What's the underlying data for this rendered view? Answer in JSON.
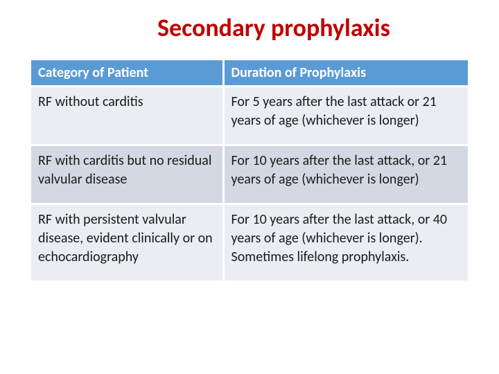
{
  "slide": {
    "title": "Secondary prophylaxis",
    "title_color": "#c00000",
    "title_fontsize": 36,
    "background_color": "#ffffff",
    "table": {
      "header_bg": "#5b9bd5",
      "header_fg": "#ffffff",
      "row_band_colors": [
        "#eaedf2",
        "#d3d8e2"
      ],
      "border_color": "#ffffff",
      "cell_fontsize": 20,
      "columns": [
        {
          "label": "Category of Patient",
          "width_pct": 44
        },
        {
          "label": "Duration of Prophylaxis",
          "width_pct": 56
        }
      ],
      "rows": [
        {
          "category": "RF without carditis",
          "duration": "For 5 years after the last attack or 21 years of age (whichever is longer)"
        },
        {
          "category": "RF with carditis but no residual valvular disease",
          "duration": "For 10 years after the last attack, or 21 years of age (whichever is longer)"
        },
        {
          "category": " RF with persistent valvular disease, evident clinically or on echocardiography",
          "duration": "For 10 years after the last attack, or 40 years of age (whichever is longer). Sometimes lifelong prophylaxis."
        }
      ]
    }
  }
}
